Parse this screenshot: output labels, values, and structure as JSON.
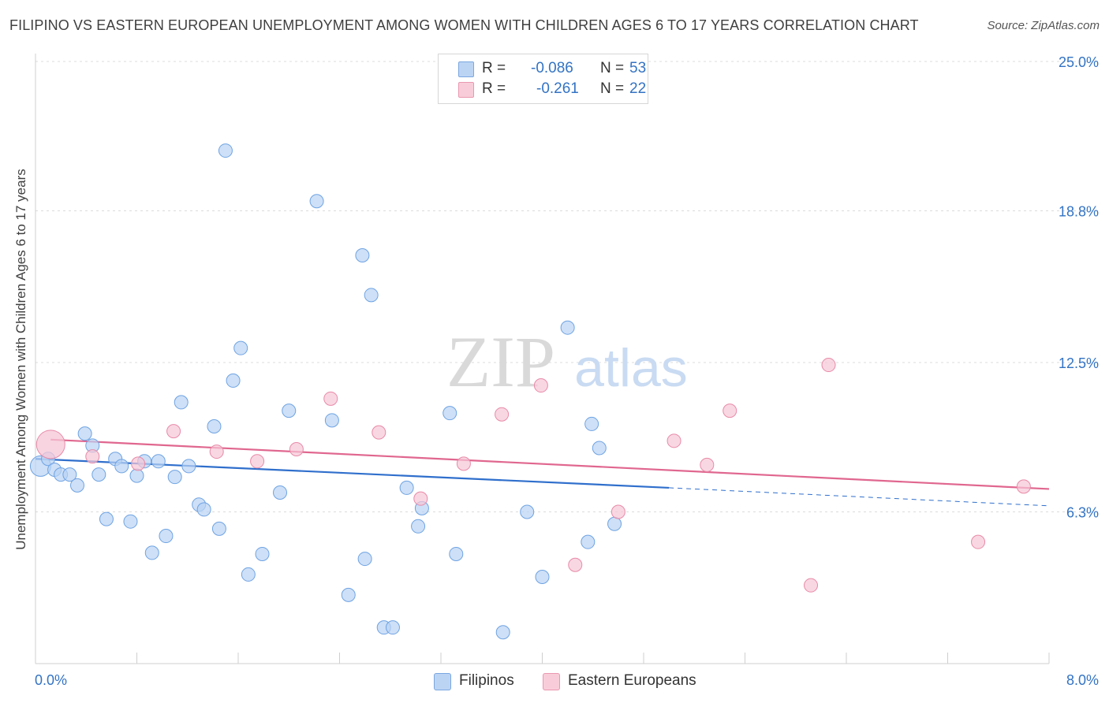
{
  "title": "FILIPINO VS EASTERN EUROPEAN UNEMPLOYMENT AMONG WOMEN WITH CHILDREN AGES 6 TO 17 YEARS CORRELATION CHART",
  "source": "Source: ZipAtlas.com",
  "watermark": {
    "zip": "ZIP",
    "atlas": "atlas"
  },
  "legend_stats": [
    {
      "r_label": "R =",
      "r_value": "-0.086",
      "n_label": "N =",
      "n_value": "53",
      "color": "#a9c8ef"
    },
    {
      "r_label": "R =",
      "r_value": "-0.261",
      "n_label": "N =",
      "n_value": "22",
      "color": "#f5b8cb"
    }
  ],
  "chart_data": {
    "type": "scatter",
    "title": "FILIPINO VS EASTERN EUROPEAN UNEMPLOYMENT AMONG WOMEN WITH CHILDREN AGES 6 TO 17 YEARS CORRELATION CHART",
    "xlabel": "",
    "ylabel": "Unemployment Among Women with Children Ages 6 to 17 years",
    "xlim": [
      0.0,
      8.0
    ],
    "ylim": [
      0.0,
      25.0
    ],
    "x_tick_labels": [
      "0.0%",
      "8.0%"
    ],
    "y_ticks": [
      6.3,
      12.5,
      18.8,
      25.0
    ],
    "y_tick_labels": [
      "6.3%",
      "12.5%",
      "18.8%",
      "25.0%"
    ],
    "grid": "horizontal dashed",
    "legend_position": "bottom-center",
    "series": [
      {
        "name": "Filipinos",
        "color": "#6ea3e3",
        "fill": "#b9d3f3",
        "trend": {
          "x": [
            0.0,
            5.0
          ],
          "y": [
            8.5,
            7.3
          ],
          "dashed_extension_x": [
            5.0,
            8.0
          ],
          "dashed_extension_y": [
            7.3,
            6.55
          ]
        },
        "points": [
          {
            "x": 0.04,
            "y": 8.2,
            "size": "large"
          },
          {
            "x": 0.1,
            "y": 8.5
          },
          {
            "x": 0.15,
            "y": 8.05
          },
          {
            "x": 0.2,
            "y": 7.85
          },
          {
            "x": 0.27,
            "y": 7.85
          },
          {
            "x": 0.33,
            "y": 7.4
          },
          {
            "x": 0.39,
            "y": 9.55
          },
          {
            "x": 0.45,
            "y": 9.05
          },
          {
            "x": 0.5,
            "y": 7.85
          },
          {
            "x": 0.56,
            "y": 6.0
          },
          {
            "x": 0.63,
            "y": 8.5
          },
          {
            "x": 0.68,
            "y": 8.2
          },
          {
            "x": 0.75,
            "y": 5.9
          },
          {
            "x": 0.8,
            "y": 7.8
          },
          {
            "x": 0.86,
            "y": 8.4
          },
          {
            "x": 0.92,
            "y": 4.6
          },
          {
            "x": 0.97,
            "y": 8.4
          },
          {
            "x": 1.03,
            "y": 5.3
          },
          {
            "x": 1.1,
            "y": 7.75
          },
          {
            "x": 1.15,
            "y": 10.85
          },
          {
            "x": 1.21,
            "y": 8.2
          },
          {
            "x": 1.29,
            "y": 6.6
          },
          {
            "x": 1.33,
            "y": 6.4
          },
          {
            "x": 1.41,
            "y": 9.85
          },
          {
            "x": 1.45,
            "y": 5.6
          },
          {
            "x": 1.5,
            "y": 21.3
          },
          {
            "x": 1.56,
            "y": 11.75
          },
          {
            "x": 1.62,
            "y": 13.1
          },
          {
            "x": 1.68,
            "y": 3.7
          },
          {
            "x": 1.79,
            "y": 4.55
          },
          {
            "x": 1.93,
            "y": 7.1
          },
          {
            "x": 2.0,
            "y": 10.5
          },
          {
            "x": 2.22,
            "y": 19.2
          },
          {
            "x": 2.34,
            "y": 10.1
          },
          {
            "x": 2.47,
            "y": 2.85
          },
          {
            "x": 2.58,
            "y": 16.95
          },
          {
            "x": 2.6,
            "y": 4.35
          },
          {
            "x": 2.65,
            "y": 15.3
          },
          {
            "x": 2.75,
            "y": 1.5
          },
          {
            "x": 2.82,
            "y": 1.5
          },
          {
            "x": 2.93,
            "y": 7.3
          },
          {
            "x": 3.02,
            "y": 5.7
          },
          {
            "x": 3.05,
            "y": 6.45
          },
          {
            "x": 3.27,
            "y": 10.4
          },
          {
            "x": 3.32,
            "y": 4.55
          },
          {
            "x": 3.69,
            "y": 1.3
          },
          {
            "x": 3.88,
            "y": 6.3
          },
          {
            "x": 4.0,
            "y": 3.6
          },
          {
            "x": 4.2,
            "y": 13.95
          },
          {
            "x": 4.36,
            "y": 5.05
          },
          {
            "x": 4.39,
            "y": 9.95
          },
          {
            "x": 4.45,
            "y": 8.95
          },
          {
            "x": 4.57,
            "y": 5.8
          }
        ]
      },
      {
        "name": "Eastern Europeans",
        "color": "#e88aa8",
        "fill": "#f6c6d5",
        "trend": {
          "x": [
            0.12,
            8.0
          ],
          "y": [
            9.3,
            7.25
          ]
        },
        "points": [
          {
            "x": 0.12,
            "y": 9.1,
            "size": "large"
          },
          {
            "x": 0.45,
            "y": 8.6
          },
          {
            "x": 0.81,
            "y": 8.3
          },
          {
            "x": 1.09,
            "y": 9.65
          },
          {
            "x": 1.43,
            "y": 8.8
          },
          {
            "x": 1.75,
            "y": 8.4
          },
          {
            "x": 2.06,
            "y": 8.9
          },
          {
            "x": 2.33,
            "y": 11.0
          },
          {
            "x": 2.71,
            "y": 9.6
          },
          {
            "x": 3.04,
            "y": 6.85
          },
          {
            "x": 3.38,
            "y": 8.3
          },
          {
            "x": 3.68,
            "y": 10.35
          },
          {
            "x": 3.99,
            "y": 11.55
          },
          {
            "x": 4.26,
            "y": 4.1
          },
          {
            "x": 4.6,
            "y": 6.3
          },
          {
            "x": 5.04,
            "y": 9.25
          },
          {
            "x": 5.3,
            "y": 8.25
          },
          {
            "x": 5.48,
            "y": 10.5
          },
          {
            "x": 6.12,
            "y": 3.25
          },
          {
            "x": 6.26,
            "y": 12.4
          },
          {
            "x": 7.44,
            "y": 5.05
          },
          {
            "x": 7.8,
            "y": 7.35
          }
        ]
      }
    ]
  }
}
